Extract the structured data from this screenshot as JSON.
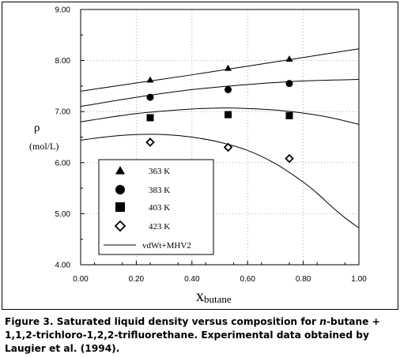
{
  "chart_data": {
    "type": "scatter",
    "xlabel_main": "x",
    "xlabel_sub": "butane",
    "ylabel_symbol": "ρ",
    "ylabel_unit": "(mol/L)",
    "xlim": [
      0.0,
      1.0
    ],
    "ylim": [
      4.0,
      9.0
    ],
    "xticks": [
      "0.00",
      "0.20",
      "0.40",
      "0.60",
      "0.80",
      "1.00"
    ],
    "yticks": [
      "4.00",
      "5.00",
      "6.00",
      "7.00",
      "8.00",
      "9.00"
    ],
    "legend_position": "bottom-left",
    "series": [
      {
        "name": "363 K",
        "marker": "triangle",
        "x": [
          0.25,
          0.53,
          0.75
        ],
        "y": [
          7.62,
          7.85,
          8.03
        ]
      },
      {
        "name": "383 K",
        "marker": "circle",
        "x": [
          0.25,
          0.53,
          0.75
        ],
        "y": [
          7.28,
          7.43,
          7.55
        ]
      },
      {
        "name": "403 K",
        "marker": "square",
        "x": [
          0.25,
          0.53,
          0.75
        ],
        "y": [
          6.88,
          6.94,
          6.92
        ]
      },
      {
        "name": "423 K",
        "marker": "diamond",
        "x": [
          0.25,
          0.53,
          0.75
        ],
        "y": [
          6.4,
          6.3,
          6.08
        ]
      }
    ],
    "model": {
      "name": "vdWt+MHV2",
      "curves": [
        {
          "x": [
            0.0,
            0.2,
            0.4,
            0.6,
            0.8,
            1.0
          ],
          "y": [
            7.4,
            7.56,
            7.72,
            7.89,
            8.06,
            8.23
          ]
        },
        {
          "x": [
            0.0,
            0.2,
            0.4,
            0.6,
            0.8,
            1.0
          ],
          "y": [
            7.1,
            7.28,
            7.43,
            7.53,
            7.6,
            7.63
          ]
        },
        {
          "x": [
            0.0,
            0.2,
            0.4,
            0.5,
            0.6,
            0.7,
            0.8,
            0.9,
            1.0
          ],
          "y": [
            6.8,
            6.96,
            7.05,
            7.07,
            7.06,
            7.03,
            6.97,
            6.88,
            6.75
          ]
        },
        {
          "x": [
            0.0,
            0.1,
            0.2,
            0.3,
            0.4,
            0.5,
            0.6,
            0.7,
            0.8,
            0.85,
            0.9,
            0.95,
            1.0
          ],
          "y": [
            6.44,
            6.51,
            6.55,
            6.55,
            6.5,
            6.4,
            6.24,
            5.98,
            5.62,
            5.4,
            5.15,
            4.92,
            4.72
          ]
        }
      ]
    }
  },
  "caption": {
    "part1": "Figure 3. Saturated liquid density versus composition for ",
    "italic": "n",
    "part2": "-butane + 1,1,2-trichloro-1,2,2-trifluorethane. Experimental data obtained by Laugier et al. (1994)."
  }
}
